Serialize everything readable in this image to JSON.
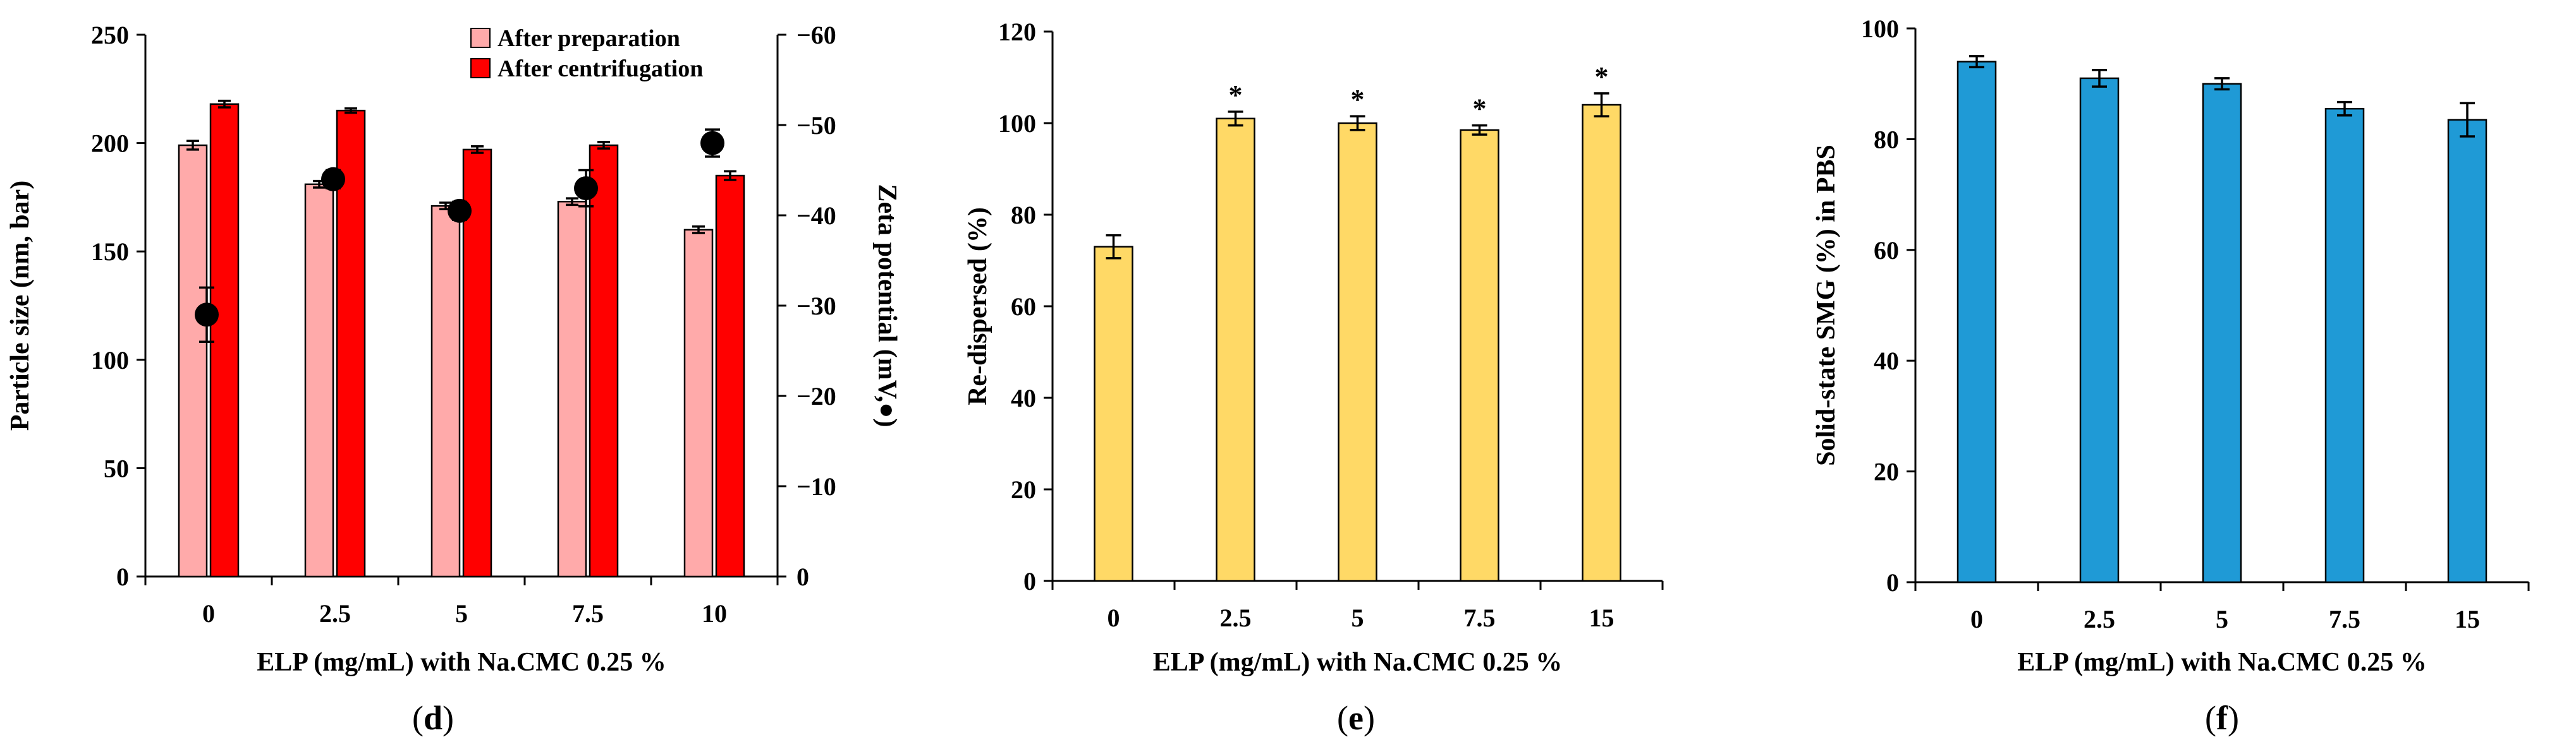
{
  "chart_data": [
    {
      "type": "bar",
      "panel_label": "d",
      "categories": [
        "0",
        "2.5",
        "5",
        "7.5",
        "10"
      ],
      "series": [
        {
          "name": "After preparation",
          "color": "#ffaaaa",
          "values": [
            199,
            181,
            171,
            173,
            160
          ],
          "errors": [
            2,
            1.5,
            1.5,
            1.5,
            1.5
          ]
        },
        {
          "name": "After centrifugation",
          "color": "#ff0000",
          "values": [
            218,
            215,
            197,
            199,
            185
          ],
          "errors": [
            1.5,
            1,
            1.5,
            1.5,
            2
          ]
        }
      ],
      "zeta_series": {
        "name": "Zeta potential",
        "values": [
          -29,
          -44,
          -40.5,
          -43,
          -48
        ],
        "errors": [
          3,
          1,
          1,
          2,
          1.5
        ]
      },
      "xlabel": "ELP (mg/mL) with Na.CMC 0.25 %",
      "ylabel": "Particle size (nm, bar)",
      "ylabel_right": "Zeta potential (mV,●)",
      "ylim": [
        0,
        250
      ],
      "yticks": [
        "0",
        "50",
        "100",
        "150",
        "200",
        "250"
      ],
      "ylim_right": [
        0,
        -60
      ],
      "yticks_right": [
        "0",
        "−10",
        "−20",
        "−30",
        "−40",
        "−50",
        "−60"
      ],
      "legend_position": "top-right"
    },
    {
      "type": "bar",
      "panel_label": "e",
      "categories": [
        "0",
        "2.5",
        "5",
        "7.5",
        "15"
      ],
      "values": [
        73,
        101,
        100,
        98.5,
        104
      ],
      "errors": [
        2.5,
        1.5,
        1.5,
        1,
        2.5
      ],
      "annotations": [
        "",
        "*",
        "*",
        "*",
        "*"
      ],
      "color": "#ffd966",
      "xlabel": "ELP (mg/mL) with Na.CMC 0.25 %",
      "ylabel": "Re-dispersed (%)",
      "ylim": [
        0,
        120
      ],
      "yticks": [
        "0",
        "20",
        "40",
        "60",
        "80",
        "100",
        "120"
      ]
    },
    {
      "type": "bar",
      "panel_label": "f",
      "categories": [
        "0",
        "2.5",
        "5",
        "7.5",
        "15"
      ],
      "values": [
        94,
        91,
        90,
        85.5,
        83.5
      ],
      "errors": [
        1,
        1.5,
        1,
        1.2,
        3
      ],
      "color": "#1f9ad6",
      "xlabel": "ELP (mg/mL) with Na.CMC 0.25 %",
      "ylabel": "Solid-state SMG (%) in PBS",
      "ylim": [
        0,
        100
      ],
      "yticks": [
        "0",
        "20",
        "40",
        "60",
        "80",
        "100"
      ]
    }
  ]
}
